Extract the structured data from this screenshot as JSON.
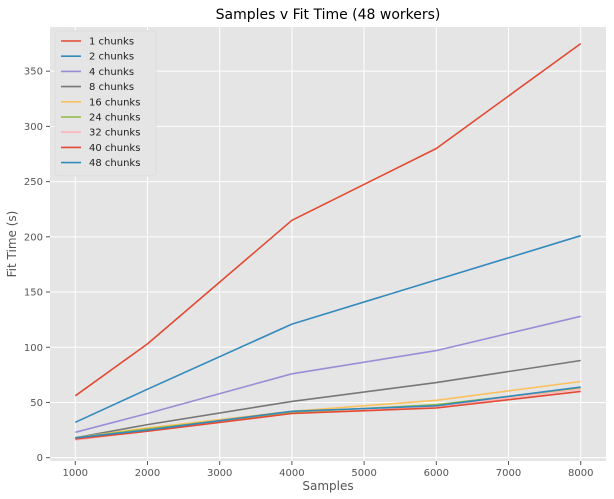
{
  "chart_data": {
    "type": "line",
    "title": "Samples v Fit Time (48 workers)",
    "xlabel": "Samples",
    "ylabel": "Fit Time (s)",
    "x": [
      1000,
      2000,
      4000,
      6000,
      8000
    ],
    "xlim": [
      650,
      8350
    ],
    "ylim": [
      -3,
      390
    ],
    "xticks": [
      1000,
      2000,
      3000,
      4000,
      5000,
      6000,
      7000,
      8000
    ],
    "yticks": [
      0,
      50,
      100,
      150,
      200,
      250,
      300,
      350
    ],
    "grid": true,
    "legend_position": "top-left",
    "series": [
      {
        "name": "1 chunks",
        "color": "#e24a33",
        "values": [
          56,
          103,
          215,
          280,
          375
        ]
      },
      {
        "name": "2 chunks",
        "color": "#348abd",
        "values": [
          32,
          62,
          121,
          161,
          201
        ]
      },
      {
        "name": "4 chunks",
        "color": "#988ed5",
        "values": [
          23,
          40,
          76,
          97,
          128
        ]
      },
      {
        "name": "8 chunks",
        "color": "#777777",
        "values": [
          18,
          30,
          51,
          68,
          88
        ]
      },
      {
        "name": "16 chunks",
        "color": "#fbc15e",
        "values": [
          18,
          27,
          42,
          52,
          69
        ]
      },
      {
        "name": "24 chunks",
        "color": "#8eba42",
        "values": [
          18,
          26,
          41,
          48,
          63
        ]
      },
      {
        "name": "32 chunks",
        "color": "#ffb5b8",
        "values": [
          16,
          24,
          40,
          46,
          62
        ]
      },
      {
        "name": "40 chunks",
        "color": "#e24a33",
        "values": [
          17,
          24,
          40,
          45,
          60
        ]
      },
      {
        "name": "48 chunks",
        "color": "#348abd",
        "values": [
          18,
          25,
          42,
          47,
          64
        ]
      }
    ]
  }
}
